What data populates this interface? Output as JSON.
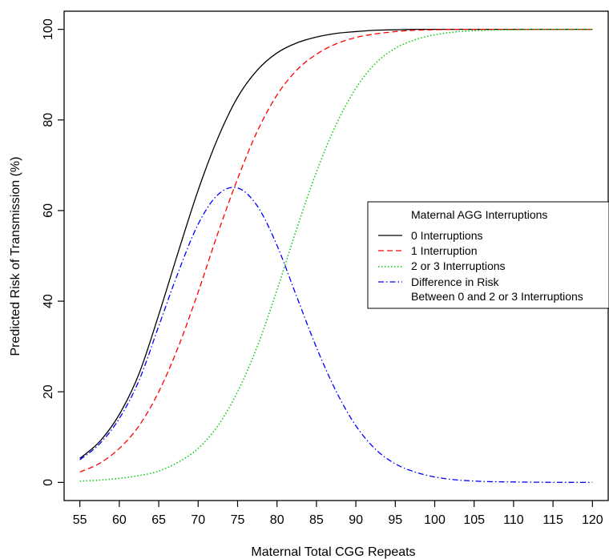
{
  "chart_data": {
    "type": "line",
    "title": "",
    "xlabel": "Maternal Total CGG Repeats",
    "ylabel": "Predicted Risk of Transmission (%)",
    "xlim": [
      53,
      122
    ],
    "ylim": [
      -4,
      104
    ],
    "x_ticks": [
      55,
      60,
      65,
      70,
      75,
      80,
      85,
      90,
      95,
      100,
      105,
      110,
      115,
      120
    ],
    "x_tick_labels": [
      "55",
      "60",
      "65",
      "70",
      "75",
      "80",
      "85",
      "90",
      "95",
      "100",
      "105",
      "110",
      "115",
      "120"
    ],
    "y_ticks": [
      0,
      20,
      40,
      60,
      80,
      100
    ],
    "y_tick_labels": [
      "0",
      "20",
      "40",
      "60",
      "80",
      "100"
    ],
    "grid": false,
    "legend": {
      "title": "Maternal AGG Interruptions",
      "position": "center-right",
      "entries": [
        "0 Interruptions",
        "1 Interruption",
        "2 or 3 Interruptions",
        "Difference in Risk",
        "Between 0 and 2 or 3 Interruptions"
      ]
    },
    "x": [
      55,
      57.5,
      60,
      62.5,
      65,
      67.5,
      70,
      72.5,
      75,
      77.5,
      80,
      82.5,
      85,
      87.5,
      90,
      92.5,
      95,
      97.5,
      100,
      102.5,
      105,
      107.5,
      110,
      112.5,
      115,
      117.5,
      120
    ],
    "series": [
      {
        "name": "0 Interruptions",
        "color": "#000000",
        "dash": "solid",
        "values": [
          5.3,
          9.0,
          15.0,
          24.0,
          37.0,
          51.0,
          64.5,
          76.0,
          85.0,
          91.0,
          94.8,
          97.0,
          98.3,
          99.1,
          99.5,
          99.8,
          99.9,
          100,
          100,
          100,
          100,
          100,
          100,
          100,
          100,
          100,
          100
        ]
      },
      {
        "name": "1 Interruption",
        "color": "#ff0000",
        "dash": "dashed",
        "values": [
          2.3,
          4.2,
          7.5,
          12.5,
          20.0,
          30.0,
          42.0,
          55.0,
          67.0,
          77.5,
          85.5,
          91.0,
          94.5,
          96.8,
          98.2,
          99.0,
          99.5,
          99.8,
          99.9,
          100,
          100,
          100,
          100,
          100,
          100,
          100,
          100
        ]
      },
      {
        "name": "2 or 3 Interruptions",
        "color": "#00cc00",
        "dash": "dotted",
        "values": [
          0.3,
          0.5,
          0.9,
          1.5,
          2.5,
          4.5,
          7.5,
          12.5,
          20.0,
          30.0,
          42.5,
          56.0,
          68.5,
          79.0,
          87.0,
          92.5,
          95.8,
          97.7,
          98.8,
          99.4,
          99.7,
          99.85,
          99.9,
          100,
          100,
          100,
          100
        ]
      },
      {
        "name": "Difference in Risk Between 0 and 2 or 3 Interruptions",
        "color": "#0000ff",
        "dash": "dashdot",
        "values": [
          5.0,
          8.5,
          14.1,
          22.5,
          34.5,
          46.5,
          57.0,
          63.5,
          65.0,
          61.0,
          52.3,
          41.0,
          29.8,
          20.1,
          12.5,
          7.3,
          4.1,
          2.3,
          1.2,
          0.6,
          0.3,
          0.15,
          0.1,
          0.05,
          0.02,
          0.01,
          0.0
        ]
      }
    ]
  }
}
